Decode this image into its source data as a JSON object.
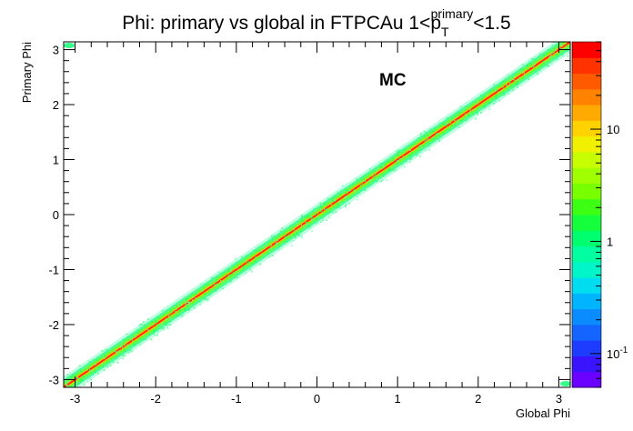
{
  "chart_data": {
    "type": "heatmap",
    "title": {
      "main": "Phi: primary vs global in FTPCAu 1<p",
      "sup": "primary",
      "sub": "T",
      "tail": "<1.5"
    },
    "xlabel": "Global Phi",
    "ylabel": "Primary Phi",
    "xlim": [
      -3.1416,
      3.1416
    ],
    "ylim": [
      -3.1416,
      3.1416
    ],
    "x_ticks": [
      -3,
      -2,
      -1,
      0,
      1,
      2,
      3
    ],
    "y_ticks": [
      -3,
      -2,
      -1,
      0,
      1,
      2,
      3
    ],
    "annotation": "MC",
    "grid": false,
    "relation": "primary_phi ≈ global_phi (diagonal band, wraps at ±π)",
    "colorbar": {
      "scale": "log",
      "range": [
        0.05,
        60
      ],
      "labeled_ticks": [
        {
          "value": 0.1,
          "label": "10",
          "exp": "-1"
        },
        {
          "value": 1,
          "label": "1",
          "exp": ""
        },
        {
          "value": 10,
          "label": "10",
          "exp": ""
        }
      ],
      "palette": [
        "#6a00ff",
        "#3a14ff",
        "#1e3cff",
        "#1464ff",
        "#0a8cff",
        "#00b4ff",
        "#00dcf0",
        "#00f5c8",
        "#00ffa0",
        "#00ff6e",
        "#14ff3c",
        "#3cff14",
        "#78ff00",
        "#a0ff00",
        "#c8ff00",
        "#f0f000",
        "#ffd200",
        "#ffaa00",
        "#ff8200",
        "#ff5a00",
        "#ff3200",
        "#ff0000"
      ]
    },
    "band": {
      "core_color": "#ff1a00",
      "ridge_color": "#ffb400",
      "inner_color": "#66ff33",
      "outer_color": "#33ff88",
      "halo_color": "#44ffaa"
    }
  }
}
